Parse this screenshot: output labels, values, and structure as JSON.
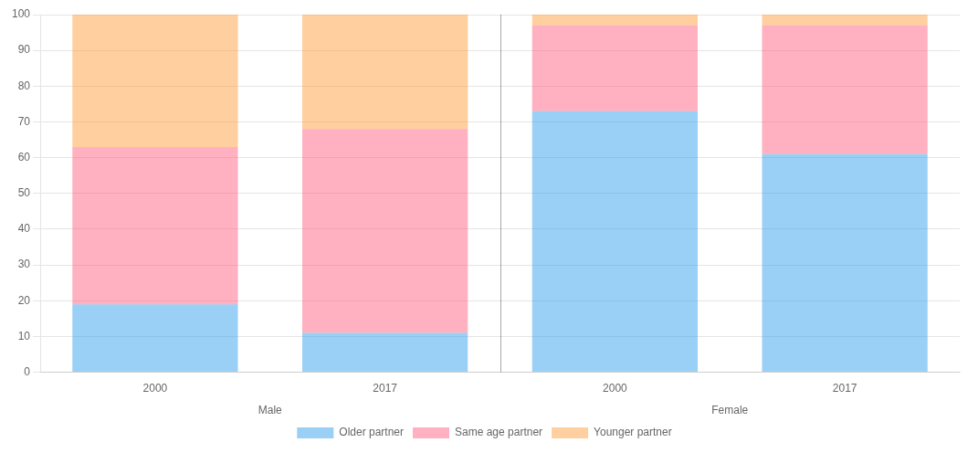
{
  "chart_data": {
    "type": "bar",
    "stacked": true,
    "categories": [
      "2000",
      "2017",
      "2000",
      "2017"
    ],
    "series": [
      {
        "name": "Older partner",
        "values": [
          19,
          11,
          73,
          61
        ]
      },
      {
        "name": "Same age partner",
        "values": [
          44,
          57,
          24,
          36
        ]
      },
      {
        "name": "Younger partner",
        "values": [
          37,
          32,
          3,
          3
        ]
      }
    ],
    "annotations": [
      "Male",
      "Female"
    ],
    "ylim": [
      0,
      100
    ],
    "yticks": [
      0,
      10,
      20,
      30,
      40,
      50,
      60,
      70,
      80,
      90,
      100
    ],
    "grid": true,
    "legend": "bottom"
  }
}
